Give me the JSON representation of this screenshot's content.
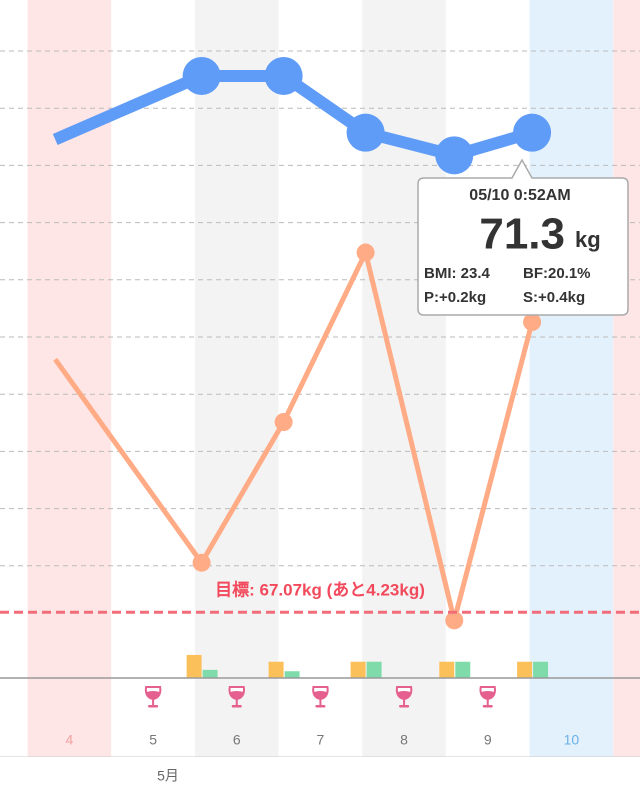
{
  "chart_data": {
    "type": "line",
    "xlim": [
      3.67,
      11.32
    ],
    "ylim": [
      66.49,
      72.47
    ],
    "y2lim": [
      18,
      22
    ],
    "y3lim": [
      0,
      100
    ],
    "days": [
      4,
      5,
      6,
      7,
      8,
      9,
      10,
      11
    ],
    "day_labels": [
      "4",
      "5",
      "6",
      "7",
      "8",
      "9",
      "10",
      null
    ],
    "day_colors": [
      "#ffe6e6",
      "#ffffff",
      "#f3f3f3",
      "#ffffff",
      "#f3f3f3",
      "#ffffff",
      "#e3f1fc",
      "#ffe6e6"
    ],
    "day_label_colors": [
      "#f4a0a0",
      "#777777",
      "#777777",
      "#777777",
      "#777777",
      "#777777",
      "#6ab0e8",
      "#f4a0a0"
    ],
    "month_label": "5月",
    "series": [
      {
        "name": "weight",
        "color": "#5f9cf7",
        "x": [
          4.33,
          6.08,
          7.06,
          8.04,
          9.1,
          10.03
        ],
        "values": [
          71.24,
          71.8,
          71.8,
          71.3,
          71.1,
          71.3
        ]
      },
      {
        "name": "body fat",
        "color": "#ffab86",
        "axis": "y2",
        "x": [
          4.33,
          6.08,
          7.06,
          8.04,
          9.1,
          10.03
        ],
        "values": [
          19.88,
          18.68,
          19.51,
          20.51,
          18.34,
          20.1
        ]
      },
      {
        "name": "activity",
        "type": "bar",
        "side": "left",
        "color": "#fcc05a",
        "axis": "y3",
        "x": [
          6.08,
          7.06,
          8.04,
          9.1,
          10.03
        ],
        "values": [
          3.4,
          2.4,
          2.4,
          2.4,
          2.4
        ]
      },
      {
        "name": "activity2",
        "type": "bar",
        "side": "right",
        "color": "#7fdcaa",
        "axis": "y3",
        "x": [
          6.08,
          7.06,
          8.04,
          9.1,
          10.03
        ],
        "values": [
          1.2,
          1.0,
          2.4,
          2.4,
          2.4
        ]
      }
    ],
    "target": 67.07,
    "target_label": "目標: 67.07kg (あと4.23kg)",
    "tooltip": {
      "date": "05/10 0:52AM",
      "weight": "71.3",
      "unit": "kg",
      "bmi": "BMI: 23.4",
      "bf": "BF:20.1%",
      "p": "P:+0.2kg",
      "s": "S:+0.4kg"
    }
  }
}
